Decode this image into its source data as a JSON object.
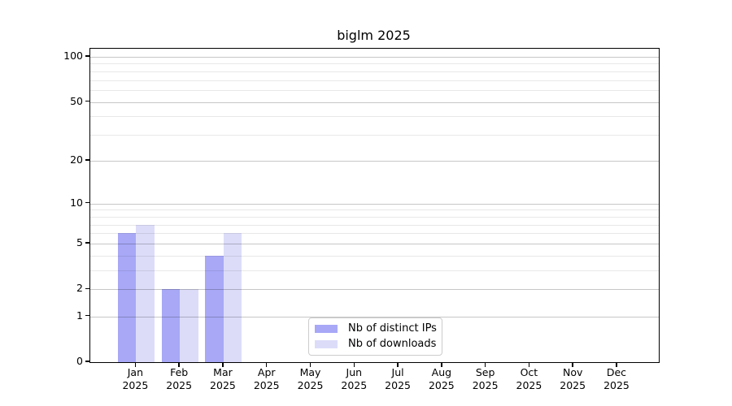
{
  "chart_data": {
    "type": "bar",
    "title": "biglm 2025",
    "categories": [
      "Jan",
      "Feb",
      "Mar",
      "Apr",
      "May",
      "Jun",
      "Jul",
      "Aug",
      "Sep",
      "Oct",
      "Nov",
      "Dec"
    ],
    "year": "2025",
    "series": [
      {
        "name": "Nb of distinct IPs",
        "color": "#a8a8f7",
        "values": [
          6,
          2,
          4,
          0,
          0,
          0,
          0,
          0,
          0,
          0,
          0,
          0
        ]
      },
      {
        "name": "Nb of downloads",
        "color": "#dcdcf9",
        "values": [
          7,
          2,
          6,
          0,
          0,
          0,
          0,
          0,
          0,
          0,
          0,
          0
        ]
      }
    ],
    "xlabel": "",
    "ylabel": "",
    "y_axis": {
      "scale": "log1p",
      "ylim": [
        0,
        113
      ],
      "major_ticks": [
        0,
        1,
        2,
        5,
        10,
        20,
        50,
        100
      ],
      "minor_gridlines": [
        3,
        4,
        6,
        7,
        8,
        9,
        30,
        40,
        60,
        70,
        80,
        90
      ]
    },
    "grid": "horizontal-major-and-minor",
    "legend_position": "lower center inside"
  },
  "colors": {
    "background": "#ffffff",
    "axis_frame": "#000000",
    "grid_major": "rgba(0,0,0,0.22)",
    "grid_minor": "rgba(0,0,0,0.09)",
    "bar_distinct_ips": "#a8a8f7",
    "bar_downloads": "#dcdcf9",
    "legend_border": "#cccccc"
  }
}
